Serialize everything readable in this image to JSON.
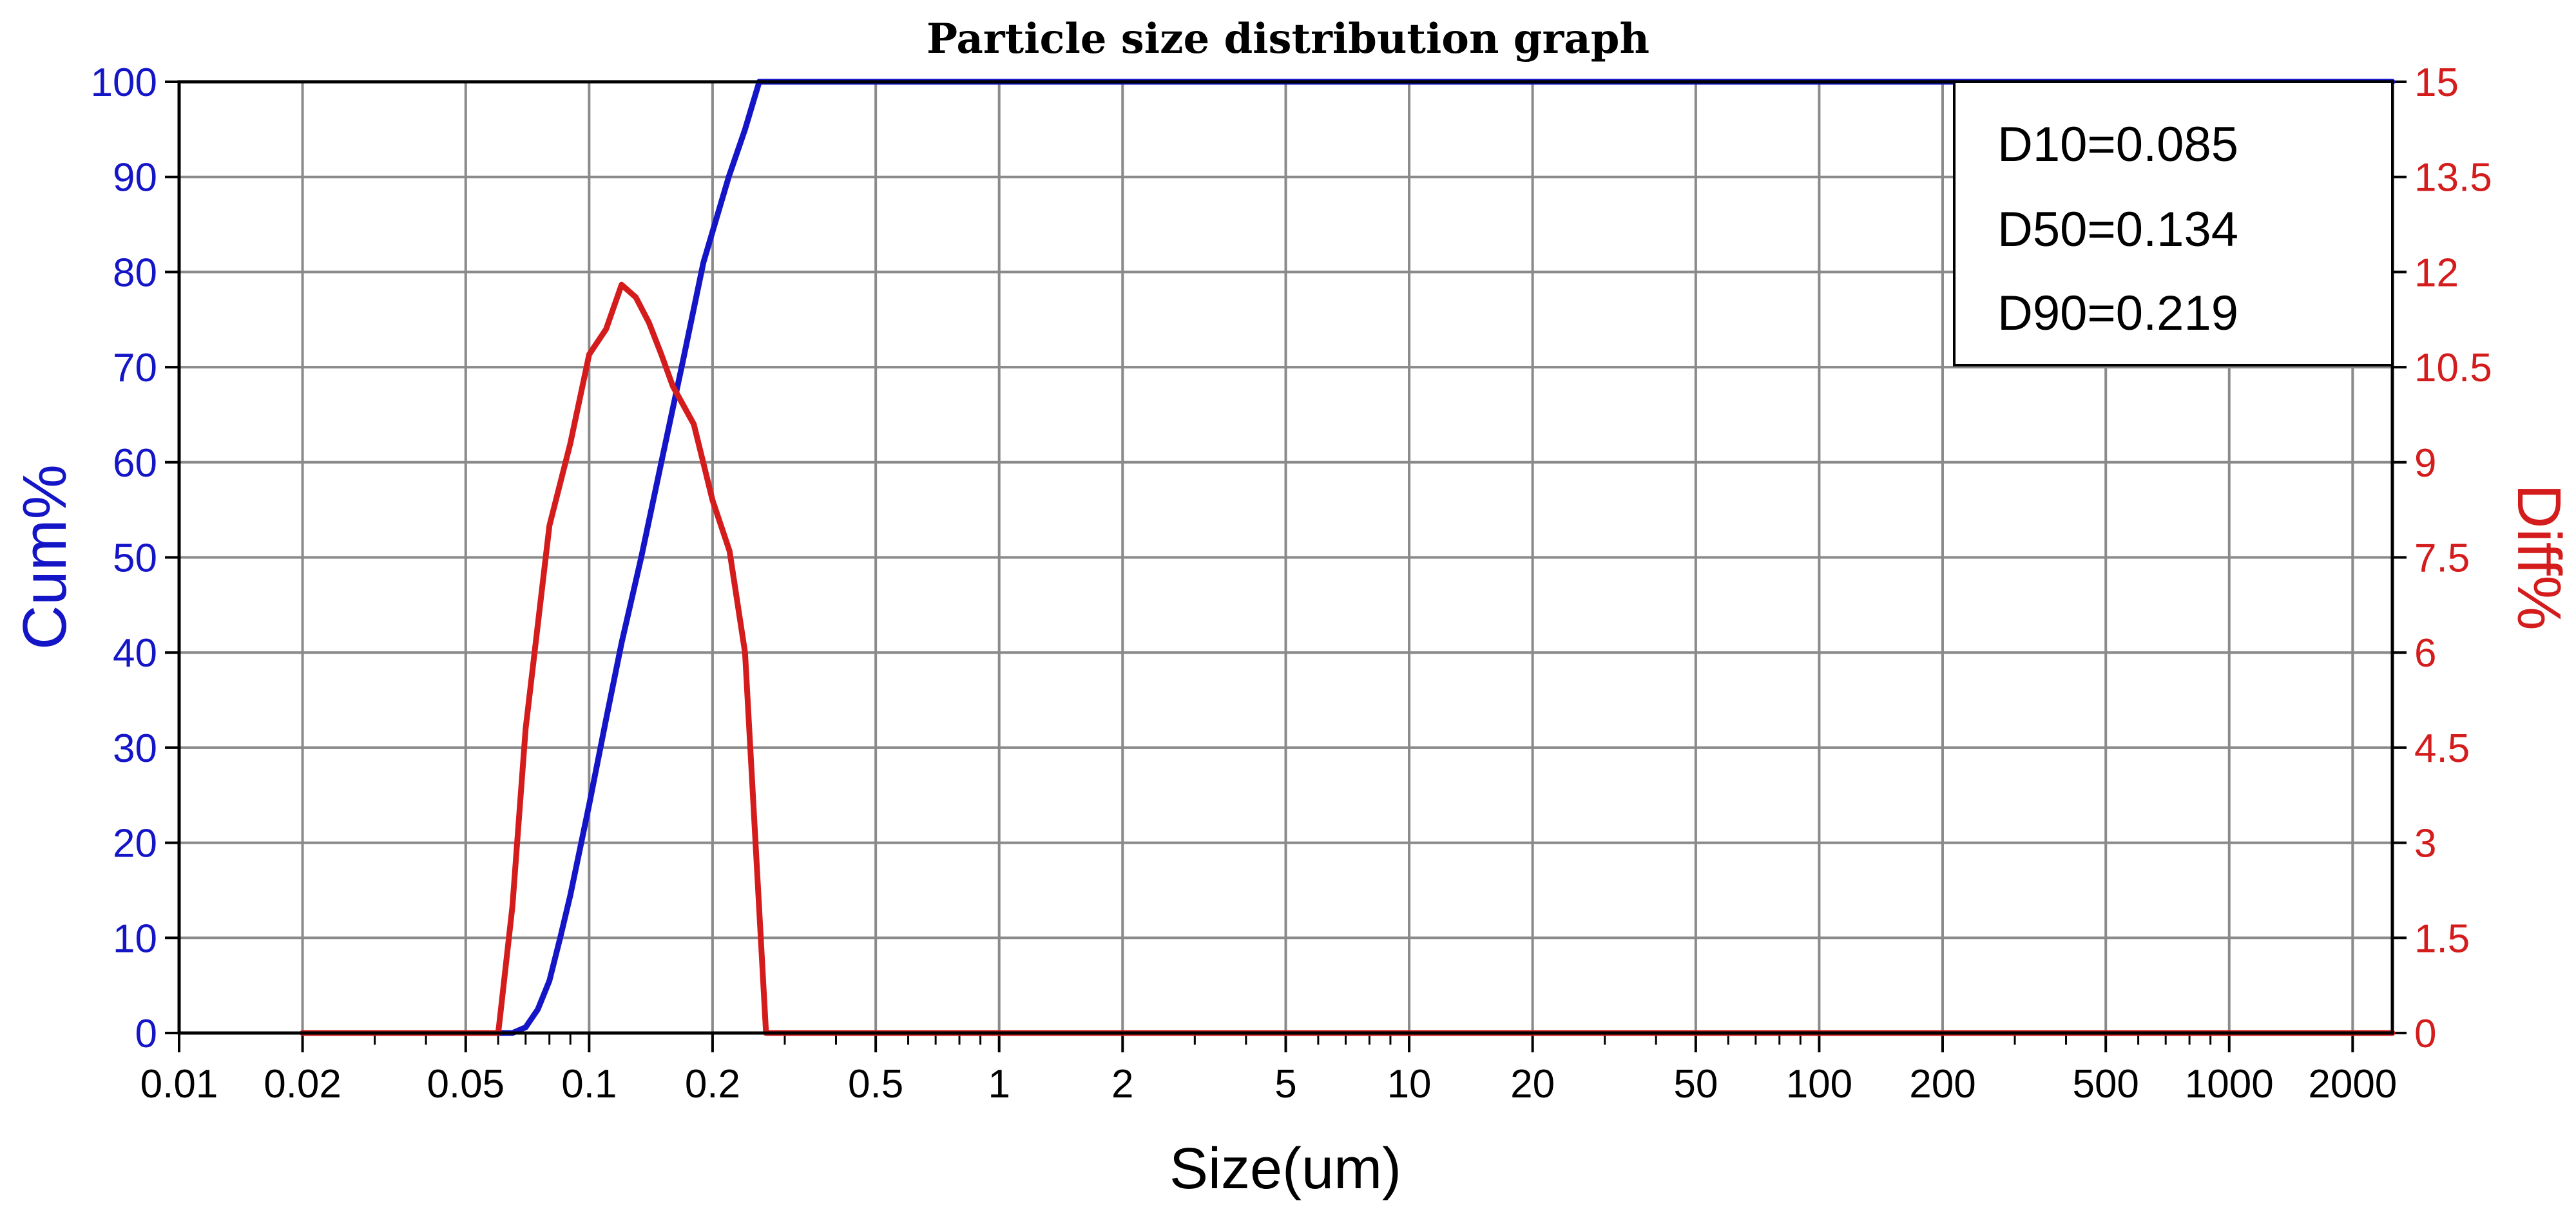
{
  "chart_data": {
    "type": "line",
    "title": "Particle size distribution graph",
    "xlabel": "Size(um)",
    "ylabel_left": "Cum%",
    "ylabel_right": "Diff%",
    "x_scale": "log",
    "xlim": [
      0.01,
      2500
    ],
    "ylim_left": [
      0,
      100
    ],
    "ylim_right": [
      0,
      15
    ],
    "x_ticks": [
      0.01,
      0.02,
      0.05,
      0.1,
      0.2,
      0.5,
      1,
      2,
      5,
      10,
      20,
      50,
      100,
      200,
      500,
      1000,
      2000
    ],
    "x_tick_labels": [
      "0.01",
      "0.02",
      "0.05",
      "0.1",
      "0.2",
      "0.5",
      "1",
      "2",
      "5",
      "10",
      "20",
      "50",
      "100",
      "200",
      "500",
      "1000",
      "2000"
    ],
    "y_left_ticks": [
      "0",
      "10",
      "20",
      "30",
      "40",
      "50",
      "60",
      "70",
      "80",
      "90",
      "100"
    ],
    "y_right_ticks": [
      "0",
      "1.5",
      "3",
      "4.5",
      "6",
      "7.5",
      "9",
      "10.5",
      "12",
      "13.5",
      "15"
    ],
    "grid": true,
    "series": [
      {
        "name": "Cum%",
        "color": "#1515c8",
        "axis": "left",
        "x": [
          0.02,
          0.0605,
          0.065,
          0.07,
          0.075,
          0.08,
          0.085,
          0.09,
          0.1,
          0.11,
          0.12,
          0.134,
          0.15,
          0.17,
          0.19,
          0.219,
          0.24,
          0.26,
          0.3,
          1,
          10,
          100,
          2500
        ],
        "y": [
          0,
          0,
          0,
          0.6,
          2.5,
          5.5,
          10,
          14.5,
          24,
          33,
          41,
          50,
          60,
          71,
          81,
          90,
          95,
          100,
          100,
          100,
          100,
          100,
          100
        ]
      },
      {
        "name": "Diff%",
        "color": "#d41c1c",
        "axis": "right",
        "x": [
          0.02,
          0.06,
          0.0605,
          0.065,
          0.07,
          0.08,
          0.09,
          0.1,
          0.11,
          0.12,
          0.13,
          0.14,
          0.15,
          0.16,
          0.18,
          0.2,
          0.22,
          0.24,
          0.27,
          0.3,
          1,
          10,
          100,
          2500
        ],
        "y": [
          0,
          0,
          0.2,
          2,
          4.8,
          8,
          9.3,
          10.7,
          11.1,
          11.8,
          11.6,
          11.2,
          10.7,
          10.2,
          9.6,
          8.4,
          7.6,
          6,
          0,
          0,
          0,
          0,
          0,
          0
        ]
      }
    ],
    "annotations": {
      "d10": "D10=0.085",
      "d50": "D50=0.134",
      "d90": "D90=0.219"
    }
  }
}
